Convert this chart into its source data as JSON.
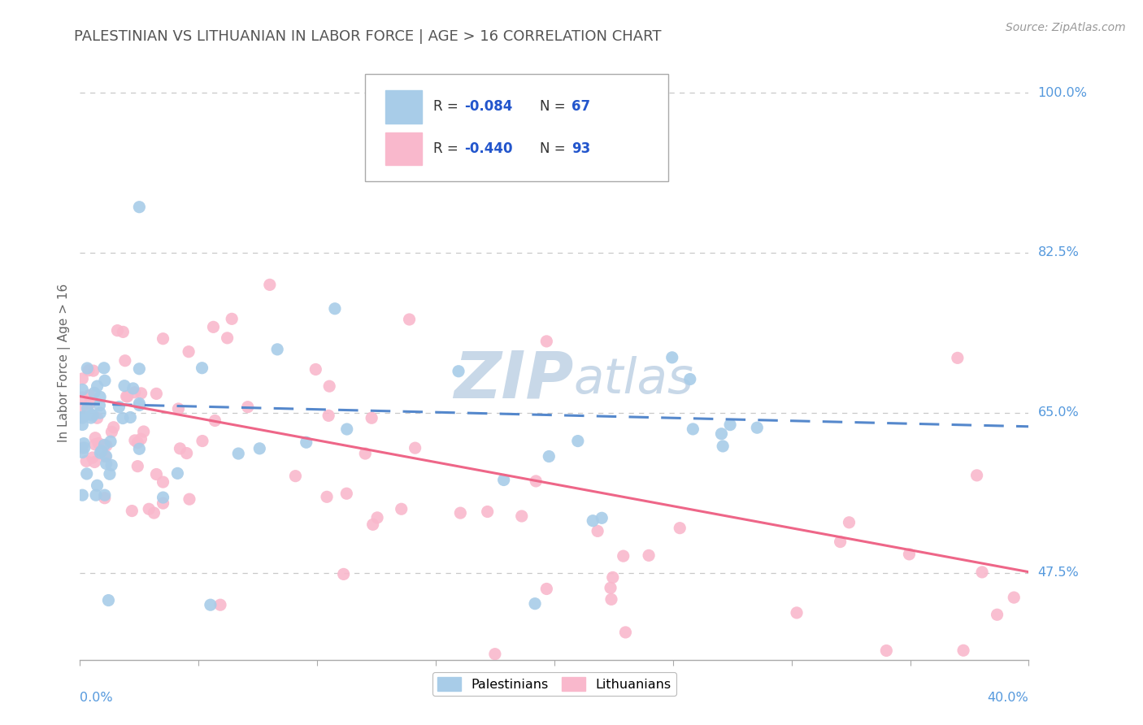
{
  "title": "PALESTINIAN VS LITHUANIAN IN LABOR FORCE | AGE > 16 CORRELATION CHART",
  "source": "Source: ZipAtlas.com",
  "ylabel": "In Labor Force | Age > 16",
  "yticks_right": [
    1.0,
    0.825,
    0.65,
    0.475
  ],
  "ytick_right_labels": [
    "100.0%",
    "82.5%",
    "65.0%",
    "47.5%"
  ],
  "xmin": 0.0,
  "xmax": 0.4,
  "ymin": 0.38,
  "ymax": 1.03,
  "palestinian_color": "#a8cce8",
  "lithuanian_color": "#f9b8cc",
  "palestinian_line_color": "#5588cc",
  "lithuanian_line_color": "#ee6688",
  "grid_color": "#c8c8c8",
  "title_color": "#555555",
  "axis_label_color": "#5599dd",
  "watermark_color": "#c8d8e8",
  "legend_R_pal": "R = -0.084",
  "legend_N_pal": "N = 67",
  "legend_R_lit": "R = -0.440",
  "legend_N_lit": "N = 93",
  "legend_text_color": "#333333",
  "legend_value_color": "#2255cc"
}
